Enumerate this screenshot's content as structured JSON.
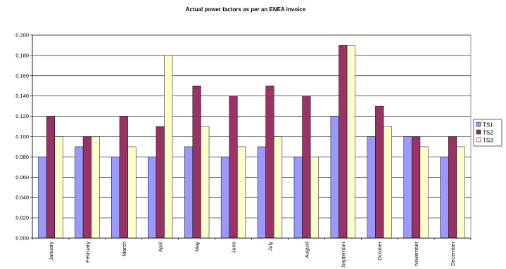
{
  "chart_data": {
    "type": "bar",
    "title": "Actual power factors as per an ENEA invoice",
    "xlabel": "",
    "ylabel": "",
    "ylim": [
      0,
      0.2
    ],
    "yticks": [
      "0.000",
      "0.020",
      "0.040",
      "0.060",
      "0.080",
      "0.100",
      "0.120",
      "0.140",
      "0.160",
      "0.180",
      "0.200"
    ],
    "grid": true,
    "legend_position": "right",
    "categories": [
      "January",
      "February",
      "March",
      "April",
      "May",
      "June",
      "July",
      "August",
      "September",
      "October",
      "November",
      "December"
    ],
    "series": [
      {
        "name": "TS1",
        "color": "#9999FF",
        "values": [
          0.08,
          0.09,
          0.08,
          0.08,
          0.09,
          0.08,
          0.09,
          0.08,
          0.12,
          0.1,
          0.1,
          0.08
        ]
      },
      {
        "name": "TS2",
        "color": "#993366",
        "values": [
          0.12,
          0.1,
          0.12,
          0.11,
          0.15,
          0.14,
          0.15,
          0.14,
          0.19,
          0.13,
          0.1,
          0.1
        ]
      },
      {
        "name": "TS3",
        "color": "#FFFFCC",
        "values": [
          0.1,
          0.1,
          0.09,
          0.18,
          0.11,
          0.09,
          0.1,
          0.08,
          0.19,
          0.11,
          0.09,
          0.09
        ]
      }
    ]
  }
}
